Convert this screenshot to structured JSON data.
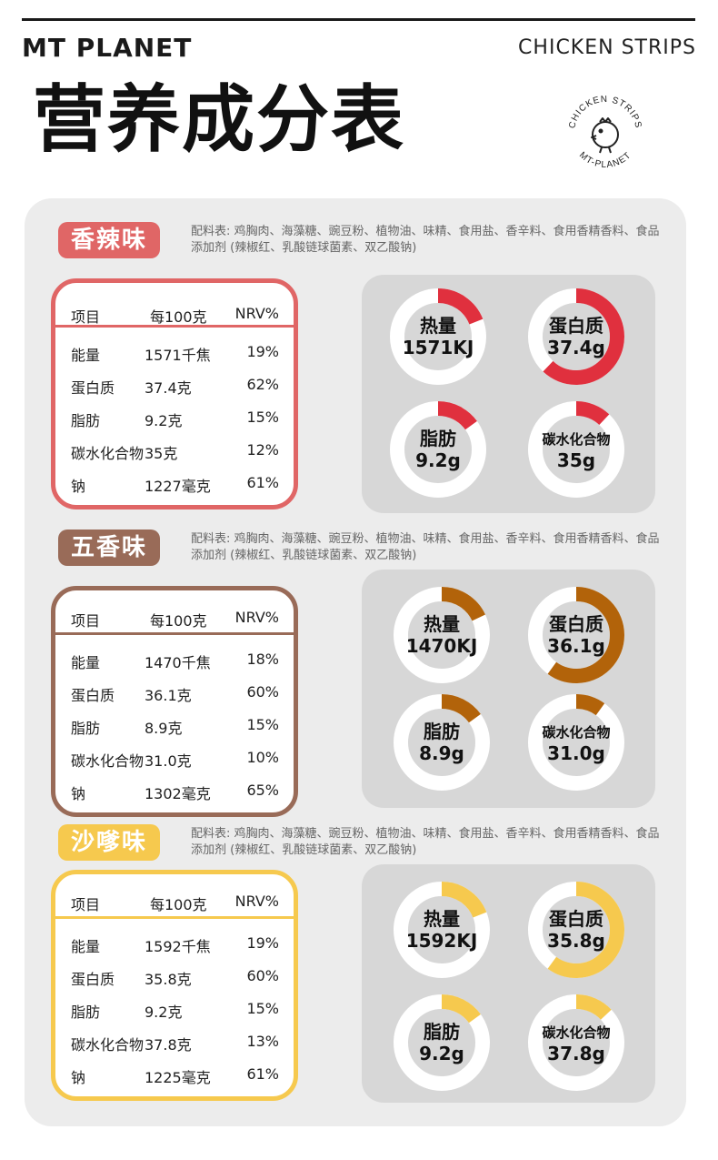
{
  "header": {
    "brand": "MT  PLANET",
    "product": "CHICKEN STRIPS",
    "title": "营养成分表",
    "stamp_top": "CHICKEN STRIPS",
    "stamp_bottom": "MT-PLANET"
  },
  "table_headers": {
    "item": "项目",
    "per100": "每100克",
    "nrv": "NRV%"
  },
  "ring_names": {
    "energy": "热量",
    "protein": "蛋白质",
    "fat": "脂肪",
    "carbs": "碳水化合物"
  },
  "ingredients": "配料表: 鸡胸肉、海藻糖、豌豆粉、植物油、味精、食用盐、香辛料、食用香精香料、食品添加剂 (辣椒红、乳酸链球菌素、双乙酸钠)",
  "colors": {
    "spicy": "#e06666",
    "five_spice": "#996b58",
    "satay": "#f6c94e",
    "ring_track": "#ffffff",
    "ring_inner": "#d7d7d7"
  },
  "sections": [
    {
      "flavor": "香辣味",
      "rows": [
        {
          "name": "能量",
          "amount": "1571千焦",
          "nrv": "19%"
        },
        {
          "name": "蛋白质",
          "amount": "37.4克",
          "nrv": "62%"
        },
        {
          "name": "脂肪",
          "amount": "9.2克",
          "nrv": "15%"
        },
        {
          "name": "碳水化合物",
          "amount": "35克",
          "nrv": "12%"
        },
        {
          "name": "钠",
          "amount": "1227毫克",
          "nrv": "61%"
        }
      ],
      "rings": {
        "energy": {
          "value": "1571KJ",
          "percent": 19
        },
        "protein": {
          "value": "37.4g",
          "percent": 62
        },
        "fat": {
          "value": "9.2g",
          "percent": 15
        },
        "carbs": {
          "value": "35g",
          "percent": 12
        }
      },
      "ring_color": "#e0303e"
    },
    {
      "flavor": "五香味",
      "rows": [
        {
          "name": "能量",
          "amount": "1470千焦",
          "nrv": "18%"
        },
        {
          "name": "蛋白质",
          "amount": "36.1克",
          "nrv": "60%"
        },
        {
          "name": "脂肪",
          "amount": "8.9克",
          "nrv": "15%"
        },
        {
          "name": "碳水化合物",
          "amount": "31.0克",
          "nrv": "10%"
        },
        {
          "name": "钠",
          "amount": "1302毫克",
          "nrv": "65%"
        }
      ],
      "rings": {
        "energy": {
          "value": "1470KJ",
          "percent": 18
        },
        "protein": {
          "value": "36.1g",
          "percent": 60
        },
        "fat": {
          "value": "8.9g",
          "percent": 15
        },
        "carbs": {
          "value": "31.0g",
          "percent": 10
        }
      },
      "ring_color": "#b2630a"
    },
    {
      "flavor": "沙嗲味",
      "rows": [
        {
          "name": "能量",
          "amount": "1592千焦",
          "nrv": "19%"
        },
        {
          "name": "蛋白质",
          "amount": "35.8克",
          "nrv": "60%"
        },
        {
          "name": "脂肪",
          "amount": "9.2克",
          "nrv": "15%"
        },
        {
          "name": "碳水化合物",
          "amount": "37.8克",
          "nrv": "13%"
        },
        {
          "name": "钠",
          "amount": "1225毫克",
          "nrv": "61%"
        }
      ],
      "rings": {
        "energy": {
          "value": "1592KJ",
          "percent": 19
        },
        "protein": {
          "value": "35.8g",
          "percent": 60
        },
        "fat": {
          "value": "9.2g",
          "percent": 15
        },
        "carbs": {
          "value": "37.8g",
          "percent": 13
        }
      },
      "ring_color": "#f6c94e"
    }
  ]
}
